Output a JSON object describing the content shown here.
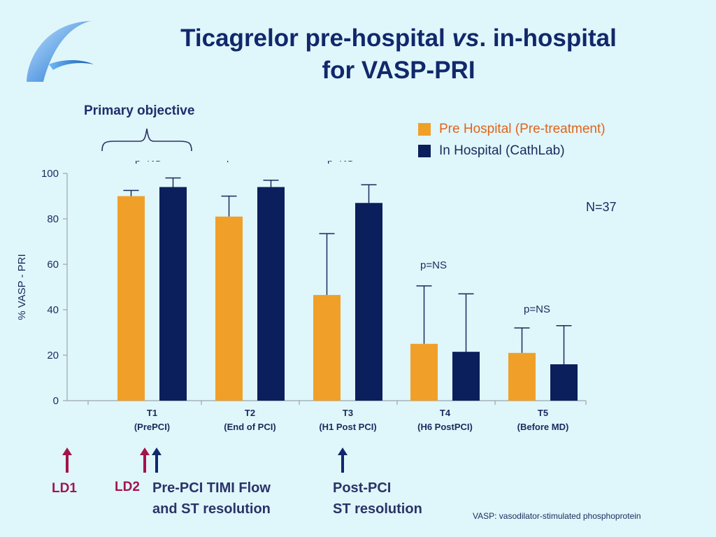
{
  "title": {
    "line1_before": "Ticagrelor pre-hospital ",
    "line1_em": "vs",
    "line1_after": ". in-hospital",
    "line2": "for VASP-PRI"
  },
  "primary_objective": "Primary objective",
  "n_label": "N=37",
  "footnote": "VASP: vasodilator-stimulated phosphoprotein",
  "annotations": {
    "ld1": "LD1",
    "ld2": "LD2",
    "pre_pci_line1": "Pre-PCI TIMI Flow",
    "pre_pci_line2": "and ST resolution",
    "post_pci_line1": "Post-PCI",
    "post_pci_line2": "ST resolution"
  },
  "colors": {
    "pre_hospital": "#f0a028",
    "in_hospital": "#0b1f5c",
    "ld_arrow": "#a3144a",
    "post_arrow": "#12286b"
  },
  "icons": {
    "logo": "wave-logo-icon",
    "arrows": "arrow-up-icon"
  },
  "chart_data": {
    "type": "bar",
    "title": "",
    "xlabel": "",
    "ylabel": "% VASP - PRI",
    "ylim": [
      0,
      100
    ],
    "yticks": [
      0,
      20,
      40,
      60,
      80,
      100
    ],
    "grid": false,
    "legend_position": "top-right",
    "categories": [
      {
        "line1": "T1",
        "line2": "(PrePCI)"
      },
      {
        "line1": "T2",
        "line2": "(End of PCI)"
      },
      {
        "line1": "T3",
        "line2": "(H1 Post PCI)"
      },
      {
        "line1": "T4",
        "line2": "(H6 PostPCI)"
      },
      {
        "line1": "T5",
        "line2": "(Before MD)"
      }
    ],
    "series": [
      {
        "name": "Pre Hospital (Pre-treatment)",
        "values": [
          90,
          81,
          46.5,
          25,
          21
        ],
        "error_upper": [
          92.5,
          90,
          73.5,
          50.5,
          32
        ]
      },
      {
        "name": "In Hospital (CathLab)",
        "values": [
          94,
          94,
          87,
          21.5,
          16
        ],
        "error_upper": [
          98,
          97,
          95,
          47,
          33
        ]
      }
    ],
    "p_labels": [
      "p=NS",
      "p=NS",
      "p=NS",
      "p=NS",
      "p=NS"
    ]
  }
}
